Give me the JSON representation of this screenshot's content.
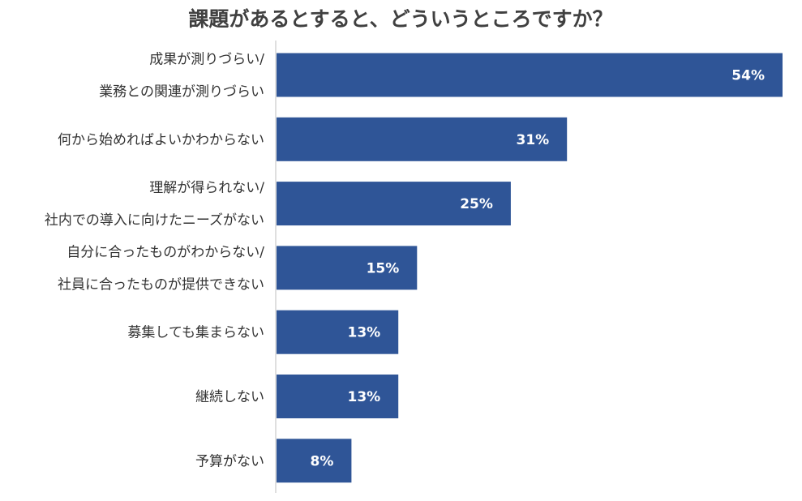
{
  "chart_data": {
    "type": "bar",
    "orientation": "horizontal",
    "title": "課題があるとすると、どういうところですか？",
    "categories": [
      [
        "成果が測りづらい/",
        "業務との関連が測りづらい"
      ],
      [
        "何から始めればよいかわからない"
      ],
      [
        "理解が得られない/",
        "社内での導入に向けたニーズがない"
      ],
      [
        "自分に合ったものがわからない/",
        "社員に合ったものが提供できない"
      ],
      [
        "募集しても集まらない"
      ],
      [
        "継続しない"
      ],
      [
        "予算がない"
      ]
    ],
    "values": [
      54,
      31,
      25,
      15,
      13,
      13,
      8
    ],
    "value_labels": [
      "54%",
      "31%",
      "25%",
      "15%",
      "13%",
      "13%",
      "8%"
    ],
    "unit": "%",
    "xlim": [
      0,
      54
    ],
    "grid": false,
    "legend": "none",
    "colors": {
      "bar": "#2f5597",
      "value_text": "#ffffff",
      "label_text": "#333333",
      "title_text": "#404040",
      "axis": "#bfbfbf"
    }
  }
}
